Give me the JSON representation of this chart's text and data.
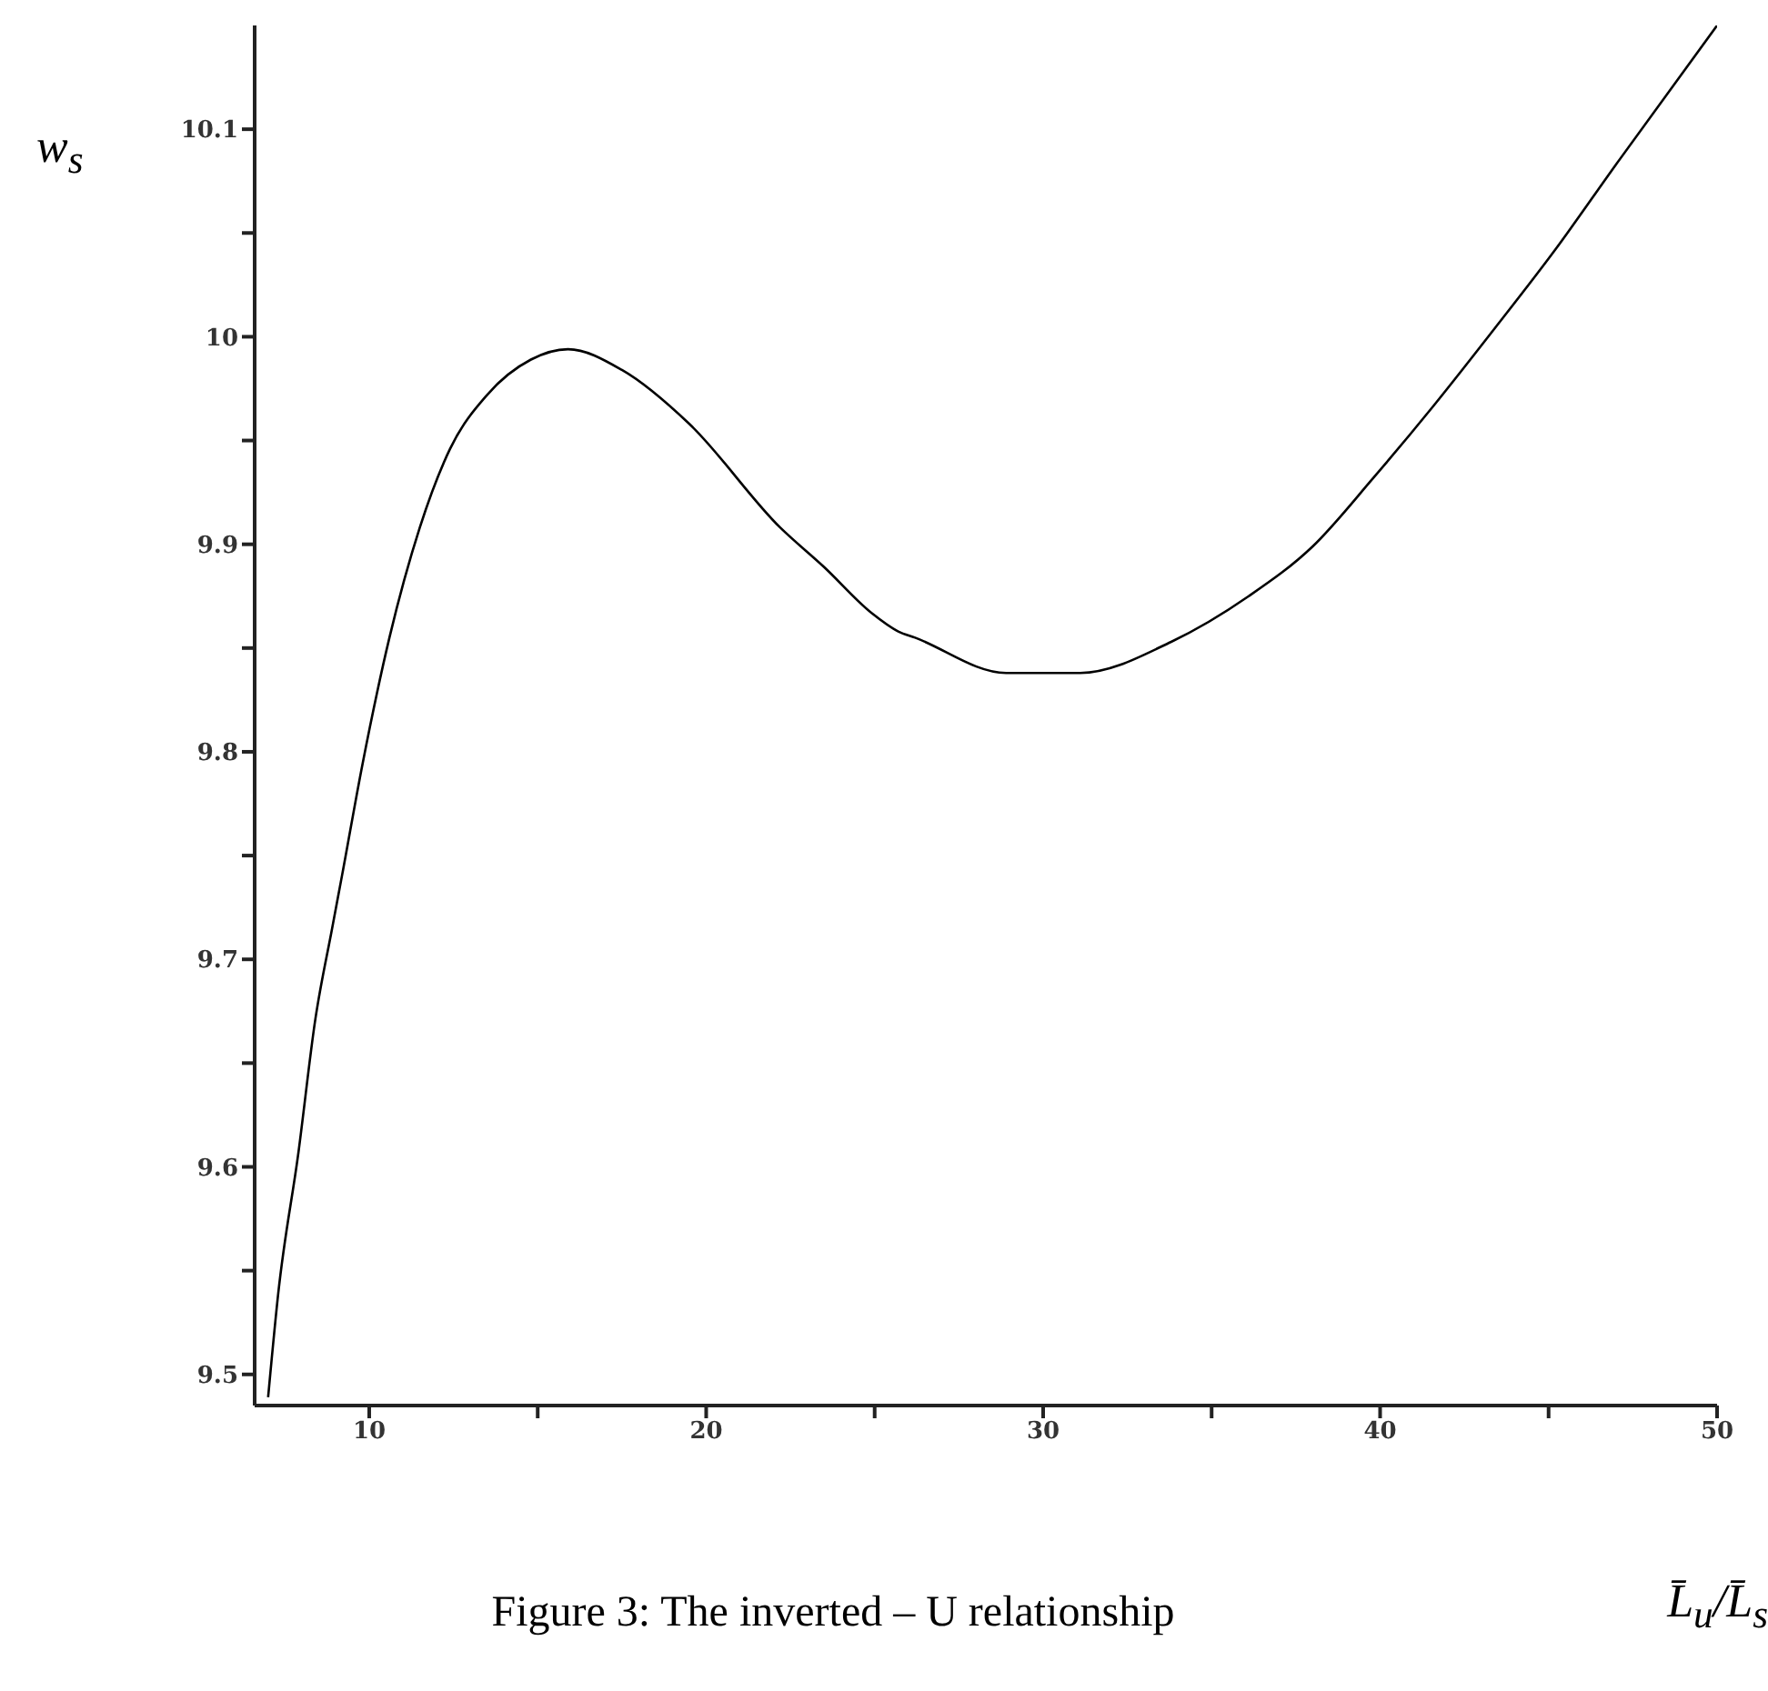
{
  "chart_data": {
    "type": "line",
    "title": "Figure 3: The inverted – U relationship",
    "xlabel": "L̄$_{u}$/L̄$_{s}$",
    "ylabel": "w$_{s}$",
    "series": [
      {
        "color": "#000000",
        "x": [
          7.0,
          7.3,
          7.9,
          8.4,
          8.9,
          9.2,
          9.8,
          10.6,
          11.5,
          12.4,
          13.5,
          14.8,
          15.9,
          17.5,
          19.5,
          22.2,
          23.5,
          24.9,
          25.7,
          26.2,
          28.9,
          31.1,
          33.8,
          36.1,
          38.0,
          39.8,
          41.6,
          43.4,
          45.2,
          47.0,
          50.0
        ],
        "values": [
          9.489,
          9.539,
          9.607,
          9.671,
          9.715,
          9.741,
          9.794,
          9.855,
          9.908,
          9.946,
          9.972,
          9.989,
          9.994,
          9.984,
          9.958,
          9.908,
          9.889,
          9.867,
          9.858,
          9.855,
          9.838,
          9.838,
          9.853,
          9.875,
          9.899,
          9.932,
          9.967,
          10.004,
          10.042,
          10.083,
          10.15
        ]
      }
    ],
    "xlim": [
      6.6,
      50
    ],
    "ylim": [
      9.485,
      10.15
    ],
    "xticks": [
      10,
      {
        "value": 15,
        "label": null
      },
      20,
      {
        "value": 25,
        "label": null
      },
      30,
      {
        "value": 35,
        "label": null
      },
      40,
      {
        "value": 45,
        "label": null
      },
      50
    ],
    "yticks": [
      9.5,
      {
        "value": 9.55,
        "label": null
      },
      9.6,
      {
        "value": 9.65,
        "label": null
      },
      9.7,
      {
        "value": 9.75,
        "label": null
      },
      9.8,
      {
        "value": 9.85,
        "label": null
      },
      9.9,
      {
        "value": 9.95,
        "label": null
      },
      10,
      {
        "value": 10.05,
        "label": null
      },
      10.1
    ],
    "grid": false,
    "legend": false,
    "marker": "none",
    "line_style": "solid"
  }
}
